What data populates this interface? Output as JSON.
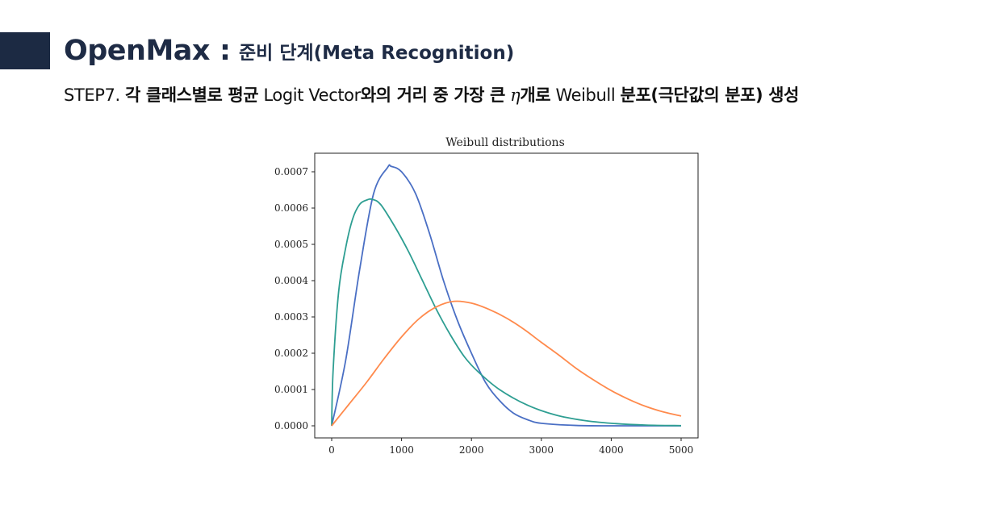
{
  "slide": {
    "accent_color": "#1c2a43",
    "title_color": "#1e2b45",
    "title_main": "OpenMax",
    "title_separator": ":",
    "title_sub": "준비 단계(Meta Recognition)",
    "step_prefix": "STEP7.",
    "step_text_1": "각 클래스별로 평균",
    "step_text_2": "Logit Vector",
    "step_text_3": "와의 거리 중 가장 큰",
    "step_symbol": "η",
    "step_text_4": "개로",
    "step_text_5": "Weibull",
    "step_text_6": "분포(극단값의 분포) 생성"
  },
  "chart_data": {
    "type": "line",
    "title": "Weibull distributions",
    "xlabel": "",
    "ylabel": "",
    "xlim": [
      0,
      5000
    ],
    "ylim": [
      0,
      0.00075
    ],
    "x_ticks": [
      0,
      1000,
      2000,
      3000,
      4000,
      5000
    ],
    "x_tick_labels": [
      "0",
      "1000",
      "2000",
      "3000",
      "4000",
      "5000"
    ],
    "y_ticks": [
      0,
      0.0001,
      0.0002,
      0.0003,
      0.0004,
      0.0005,
      0.0006,
      0.0007
    ],
    "y_tick_labels": [
      "0.0000",
      "0.0001",
      "0.0002",
      "0.0003",
      "0.0004",
      "0.0005",
      "0.0006",
      "0.0007"
    ],
    "grid": false,
    "series": [
      {
        "color": "#4a6fc4",
        "x": [
          0,
          200,
          400,
          600,
          800,
          850,
          1000,
          1200,
          1400,
          1600,
          1800,
          2000,
          2200,
          2400,
          2600,
          2800,
          3000,
          3500,
          4000,
          4500,
          5000
        ],
        "y": [
          0,
          0.00018,
          0.00043,
          0.00064,
          0.000712,
          0.000715,
          0.0007,
          0.00064,
          0.00053,
          0.0004,
          0.00029,
          0.0002,
          0.00012,
          7e-05,
          3.5e-05,
          1.7e-05,
          7e-06,
          1e-06,
          0,
          0,
          0
        ]
      },
      {
        "color": "#2e9e92",
        "x": [
          0,
          20,
          100,
          200,
          300,
          400,
          500,
          580,
          700,
          900,
          1100,
          1300,
          1500,
          1700,
          1900,
          2100,
          2400,
          2800,
          3200,
          3600,
          4000,
          4500,
          5000
        ],
        "y": [
          0,
          0.00015,
          0.00037,
          0.00049,
          0.00057,
          0.00061,
          0.000622,
          0.000624,
          0.00061,
          0.00055,
          0.00048,
          0.0004,
          0.00032,
          0.00025,
          0.00019,
          0.000148,
          0.0001,
          5.7e-05,
          3e-05,
          1.5e-05,
          7e-06,
          2e-06,
          5e-07
        ]
      },
      {
        "color": "#ff8a4c",
        "x": [
          0,
          250,
          500,
          750,
          1000,
          1250,
          1500,
          1750,
          2000,
          2250,
          2500,
          2750,
          3000,
          3250,
          3500,
          3750,
          4000,
          4250,
          4500,
          4750,
          5000
        ],
        "y": [
          0,
          6e-05,
          0.00012,
          0.000185,
          0.000245,
          0.000295,
          0.000328,
          0.000343,
          0.000338,
          0.000321,
          0.000297,
          0.000266,
          0.00023,
          0.000195,
          0.000158,
          0.000126,
          9.7e-05,
          7.3e-05,
          5.3e-05,
          3.8e-05,
          2.7e-05
        ]
      }
    ]
  }
}
